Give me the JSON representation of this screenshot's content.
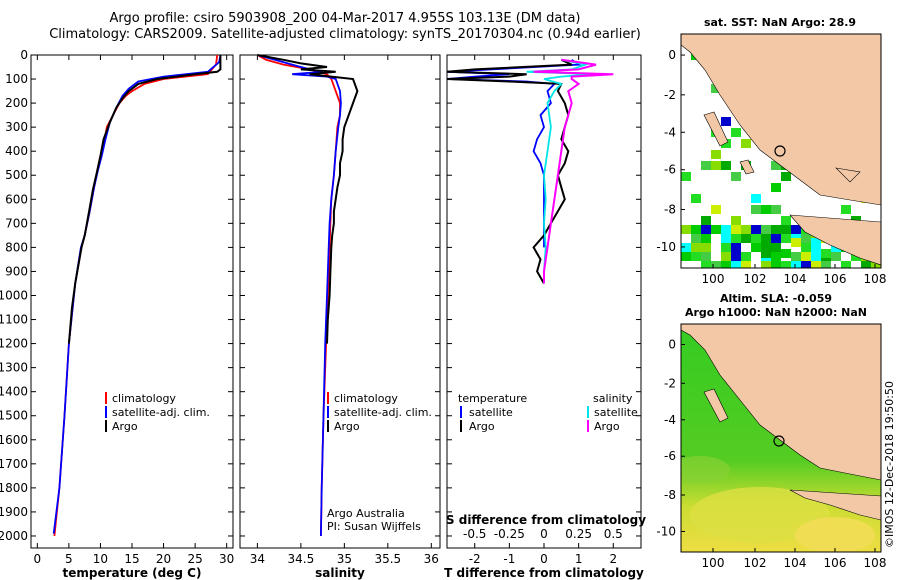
{
  "header": {
    "line1": "Argo profile: csiro 5903908_200 04-Mar-2017 4.955S 103.13E (DM data)",
    "line2": "Climatology: CARS2009. Satellite-adjusted climatology: synTS_20170304.nc (0.94d earlier)"
  },
  "colors": {
    "climatology": "#ff0000",
    "satellite": "#0000ff",
    "argo": "#000000",
    "argo_s": "#ff00ff",
    "sat_s": "#00e5e5",
    "land": "#f2c8a6",
    "sea": "#ffffff"
  },
  "chart_data": [
    {
      "type": "line",
      "id": "temperature",
      "xlabel": "temperature (deg C)",
      "xlim": [
        -1,
        31
      ],
      "ylim": [
        2050,
        0
      ],
      "xticks": [
        "0",
        "5",
        "10",
        "15",
        "20",
        "25",
        "30"
      ],
      "xtick_values": [
        0,
        5,
        10,
        15,
        20,
        25,
        30
      ],
      "yticks": [
        "0",
        "100",
        "200",
        "300",
        "400",
        "500",
        "600",
        "700",
        "800",
        "900",
        "1000",
        "1100",
        "1200",
        "1300",
        "1400",
        "1500",
        "1600",
        "1700",
        "1800",
        "1900",
        "2000"
      ],
      "legend": [
        "climatology",
        "satellite-adj. clim.",
        "Argo"
      ],
      "series": [
        {
          "name": "climatology",
          "color": "#ff0000",
          "points": [
            [
              28.5,
              0
            ],
            [
              28.3,
              40
            ],
            [
              27,
              80
            ],
            [
              20,
              100
            ],
            [
              17,
              120
            ],
            [
              15,
              150
            ],
            [
              14,
              170
            ],
            [
              13,
              200
            ],
            [
              12,
              250
            ],
            [
              11,
              300
            ],
            [
              10.5,
              380
            ],
            [
              10,
              420
            ],
            [
              9.5,
              480
            ],
            [
              9,
              550
            ],
            [
              8.3,
              650
            ],
            [
              7.5,
              750
            ],
            [
              7,
              800
            ],
            [
              6,
              950
            ],
            [
              5,
              1200
            ],
            [
              4.3,
              1500
            ],
            [
              3.5,
              1800
            ],
            [
              2.7,
              2000
            ]
          ]
        },
        {
          "name": "satellite-adj. clim.",
          "color": "#0000ff",
          "points": [
            [
              29,
              0
            ],
            [
              28.8,
              30
            ],
            [
              27,
              70
            ],
            [
              20,
              90
            ],
            [
              16,
              110
            ],
            [
              14.5,
              140
            ],
            [
              13.5,
              170
            ],
            [
              12.5,
              220
            ],
            [
              11.5,
              280
            ],
            [
              10.8,
              350
            ],
            [
              10.2,
              420
            ],
            [
              9.6,
              480
            ],
            [
              9,
              550
            ],
            [
              8.3,
              650
            ],
            [
              7.5,
              750
            ],
            [
              6.9,
              800
            ],
            [
              6,
              950
            ],
            [
              5,
              1200
            ],
            [
              4.3,
              1500
            ],
            [
              3.5,
              1800
            ],
            [
              2.6,
              1990
            ]
          ]
        },
        {
          "name": "Argo",
          "color": "#000000",
          "points": [
            [
              29,
              0
            ],
            [
              29,
              30
            ],
            [
              29,
              60
            ],
            [
              28.5,
              70
            ],
            [
              25,
              80
            ],
            [
              22,
              90
            ],
            [
              19,
              100
            ],
            [
              16,
              120
            ],
            [
              14.5,
              150
            ],
            [
              13.5,
              180
            ],
            [
              12.5,
              220
            ],
            [
              11.5,
              280
            ],
            [
              10.5,
              350
            ],
            [
              10,
              420
            ],
            [
              9.5,
              480
            ],
            [
              8.8,
              560
            ],
            [
              8.2,
              650
            ],
            [
              7.5,
              750
            ],
            [
              7,
              800
            ],
            [
              6,
              950
            ],
            [
              5.5,
              1050
            ],
            [
              5,
              1200
            ]
          ]
        }
      ]
    },
    {
      "type": "line",
      "id": "salinity",
      "xlabel": "salinity",
      "xlim": [
        33.8,
        36.1
      ],
      "ylim": [
        2050,
        0
      ],
      "xticks": [
        "34",
        "34.5",
        "35",
        "35.5",
        "36"
      ],
      "xtick_values": [
        34,
        34.5,
        35,
        35.5,
        36
      ],
      "legend": [
        "climatology",
        "satellite-adj. clim.",
        "Argo"
      ],
      "note_line1": "Argo Australia",
      "note_line2": "PI: Susan Wijffels",
      "series": [
        {
          "name": "climatology",
          "color": "#ff0000",
          "points": [
            [
              34.0,
              0
            ],
            [
              34.1,
              20
            ],
            [
              34.3,
              40
            ],
            [
              34.6,
              60
            ],
            [
              34.8,
              80
            ],
            [
              34.85,
              100
            ],
            [
              34.9,
              150
            ],
            [
              34.95,
              200
            ],
            [
              34.95,
              250
            ],
            [
              34.92,
              300
            ],
            [
              34.9,
              400
            ],
            [
              34.88,
              500
            ],
            [
              34.85,
              600
            ],
            [
              34.84,
              700
            ],
            [
              34.83,
              800
            ],
            [
              34.81,
              1000
            ],
            [
              34.79,
              1200
            ],
            [
              34.76,
              1500
            ],
            [
              34.74,
              1800
            ],
            [
              34.73,
              2000
            ]
          ]
        },
        {
          "name": "satellite-adj. clim.",
          "color": "#0000ff",
          "points": [
            [
              34.0,
              0
            ],
            [
              34.2,
              20
            ],
            [
              34.4,
              40
            ],
            [
              34.5,
              50
            ],
            [
              34.6,
              60
            ],
            [
              34.75,
              70
            ],
            [
              34.4,
              80
            ],
            [
              34.8,
              90
            ],
            [
              34.9,
              100
            ],
            [
              34.95,
              150
            ],
            [
              34.96,
              200
            ],
            [
              34.95,
              250
            ],
            [
              34.93,
              300
            ],
            [
              34.9,
              400
            ],
            [
              34.88,
              500
            ],
            [
              34.85,
              600
            ],
            [
              34.83,
              700
            ],
            [
              34.82,
              800
            ],
            [
              34.8,
              1000
            ],
            [
              34.78,
              1200
            ],
            [
              34.76,
              1500
            ],
            [
              34.74,
              1800
            ],
            [
              34.73,
              2000
            ]
          ]
        },
        {
          "name": "Argo",
          "color": "#000000",
          "points": [
            [
              34.0,
              0
            ],
            [
              34.3,
              20
            ],
            [
              34.5,
              35
            ],
            [
              34.8,
              50
            ],
            [
              34.5,
              60
            ],
            [
              34.9,
              70
            ],
            [
              34.6,
              80
            ],
            [
              34.85,
              90
            ],
            [
              35.1,
              100
            ],
            [
              35.15,
              150
            ],
            [
              35.1,
              200
            ],
            [
              35.05,
              250
            ],
            [
              35.0,
              300
            ],
            [
              34.98,
              350
            ],
            [
              34.98,
              400
            ],
            [
              34.95,
              450
            ],
            [
              34.95,
              500
            ],
            [
              34.92,
              550
            ],
            [
              34.9,
              600
            ],
            [
              34.88,
              650
            ],
            [
              34.88,
              700
            ],
            [
              34.86,
              750
            ],
            [
              34.85,
              800
            ],
            [
              34.84,
              900
            ],
            [
              34.83,
              1000
            ],
            [
              34.81,
              1100
            ],
            [
              34.8,
              1200
            ]
          ]
        }
      ]
    },
    {
      "type": "line",
      "id": "difference",
      "xlabel": "T difference from climatology",
      "xlabel_top": "S difference from climatology",
      "xlim": [
        -2.8,
        2.8
      ],
      "ylim": [
        2050,
        0
      ],
      "xticks": [
        "-2",
        "-1",
        "0",
        "1",
        "2"
      ],
      "xtick_values": [
        -2,
        -1,
        0,
        1,
        2
      ],
      "sticks": [
        "-0.5",
        "-0.25",
        "0",
        "0.25",
        "0.5"
      ],
      "stick_values": [
        -2,
        -1,
        0,
        1,
        2
      ],
      "legend_left_title": "temperature",
      "legend_right_title": "salinity",
      "legend_left": [
        "satellite",
        "Argo"
      ],
      "legend_right": [
        "satellite",
        "Argo"
      ],
      "series": [
        {
          "name": "T satellite",
          "color": "#0000ff",
          "points": [
            [
              0.8,
              20
            ],
            [
              1.0,
              40
            ],
            [
              -1.5,
              60
            ],
            [
              -3,
              70
            ],
            [
              -1,
              80
            ],
            [
              -2,
              90
            ],
            [
              -2.8,
              100
            ],
            [
              -0.5,
              110
            ],
            [
              0.3,
              120
            ],
            [
              0.1,
              150
            ],
            [
              0.2,
              200
            ],
            [
              -0.1,
              250
            ],
            [
              0,
              300
            ],
            [
              -0.2,
              350
            ],
            [
              -0.3,
              400
            ],
            [
              -0.1,
              450
            ],
            [
              0,
              500
            ],
            [
              0,
              600
            ],
            [
              0,
              700
            ],
            [
              0,
              800
            ]
          ]
        },
        {
          "name": "T Argo",
          "color": "#000000",
          "points": [
            [
              0.5,
              20
            ],
            [
              0.8,
              40
            ],
            [
              -2,
              60
            ],
            [
              -2.8,
              70
            ],
            [
              -0.5,
              80
            ],
            [
              -1,
              90
            ],
            [
              -2.8,
              100
            ],
            [
              -1,
              110
            ],
            [
              0.5,
              120
            ],
            [
              0.4,
              150
            ],
            [
              0.6,
              200
            ],
            [
              0.7,
              250
            ],
            [
              0.6,
              300
            ],
            [
              0.5,
              350
            ],
            [
              0.7,
              400
            ],
            [
              0.6,
              450
            ],
            [
              0.4,
              500
            ],
            [
              0.5,
              550
            ],
            [
              0.6,
              600
            ],
            [
              0.4,
              650
            ],
            [
              0.2,
              700
            ],
            [
              0,
              750
            ],
            [
              -0.3,
              800
            ],
            [
              -0.1,
              850
            ],
            [
              -0.2,
              900
            ],
            [
              0,
              950
            ]
          ]
        },
        {
          "name": "S satellite",
          "color": "#00e5e5",
          "points": [
            [
              0.5,
              20
            ],
            [
              1.2,
              40
            ],
            [
              0.8,
              60
            ],
            [
              -0.5,
              70
            ],
            [
              1.5,
              80
            ],
            [
              0.5,
              90
            ],
            [
              0,
              100
            ],
            [
              0.5,
              120
            ],
            [
              0.3,
              150
            ],
            [
              0.1,
              200
            ],
            [
              0.2,
              300
            ],
            [
              0.1,
              400
            ],
            [
              0,
              500
            ],
            [
              0.05,
              600
            ],
            [
              0,
              700
            ],
            [
              0.05,
              800
            ],
            [
              0,
              900
            ]
          ]
        },
        {
          "name": "S Argo",
          "color": "#ff00ff",
          "points": [
            [
              0.5,
              20
            ],
            [
              1.5,
              40
            ],
            [
              1.0,
              60
            ],
            [
              -0.3,
              70
            ],
            [
              2.0,
              80
            ],
            [
              0.8,
              90
            ],
            [
              0.8,
              100
            ],
            [
              1.0,
              120
            ],
            [
              0.7,
              150
            ],
            [
              0.8,
              200
            ],
            [
              0.6,
              300
            ],
            [
              0.5,
              400
            ],
            [
              0.4,
              500
            ],
            [
              0.3,
              600
            ],
            [
              0.2,
              700
            ],
            [
              0.1,
              800
            ],
            [
              0,
              900
            ],
            [
              0,
              950
            ]
          ]
        }
      ]
    }
  ],
  "maps": {
    "top": {
      "title": "sat. SST: NaN Argo: 28.9",
      "xticks": [
        "100",
        "102",
        "104",
        "106",
        "108"
      ],
      "yticks": [
        "0",
        "-2",
        "-4",
        "-6",
        "-8",
        "-10"
      ]
    },
    "bottom": {
      "title_line1": "Altim. SLA: -0.059",
      "title_line2": "Argo h1000: NaN h2000: NaN",
      "xticks": [
        "100",
        "102",
        "104",
        "106",
        "108"
      ],
      "yticks": [
        "0",
        "-2",
        "-4",
        "-6",
        "-8",
        "-10"
      ]
    }
  },
  "credit": "©IMOS 12-Dec-2018 19:50:50"
}
